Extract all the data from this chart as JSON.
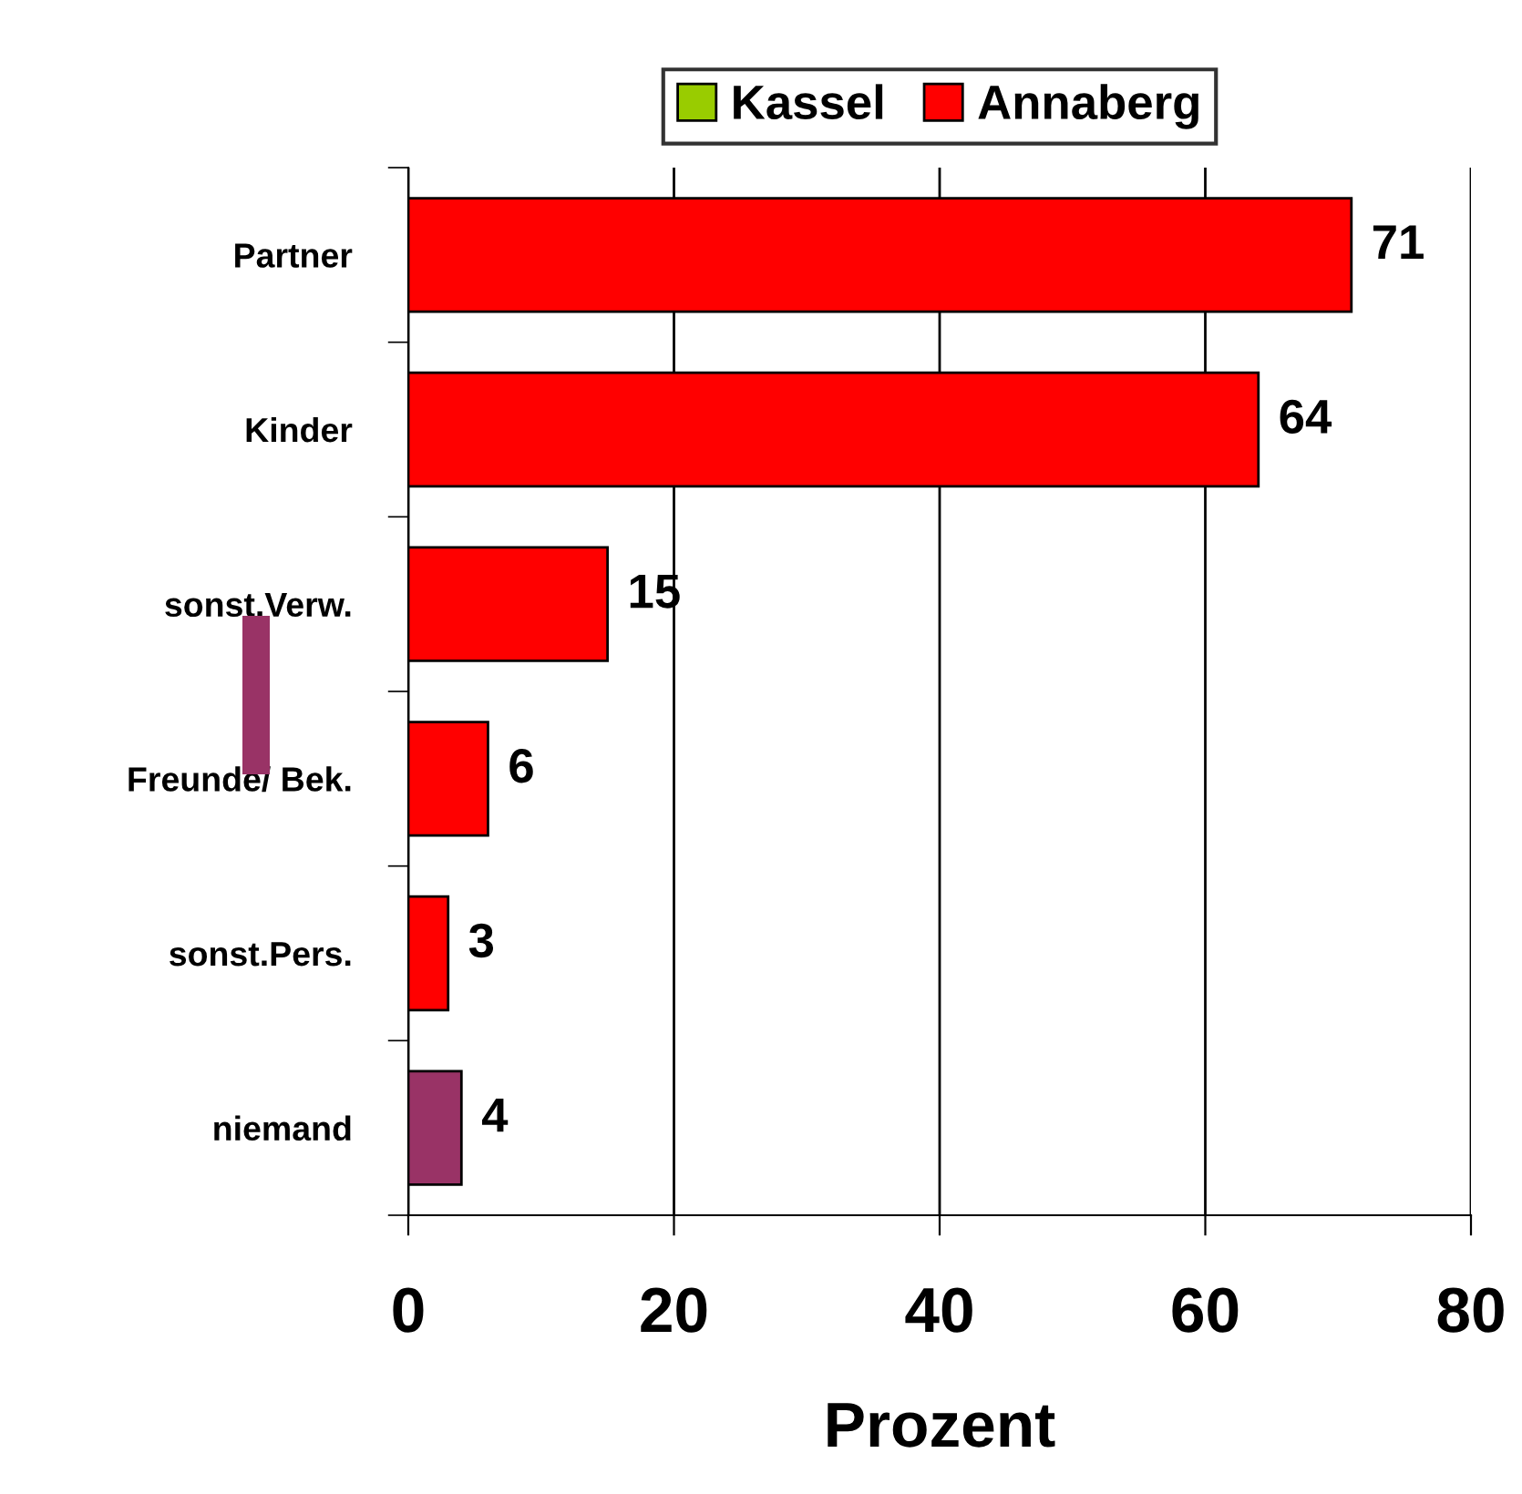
{
  "chart_data": {
    "type": "bar",
    "orientation": "horizontal",
    "xlabel": "Prozent",
    "categories": [
      "Partner",
      "Kinder",
      "sonst.Verw.",
      "Freunde/ Bek.",
      "sonst.Pers.",
      "niemand"
    ],
    "series": [
      {
        "name": "Kassel",
        "color": "#99cc00",
        "values": [
          null,
          null,
          null,
          null,
          null,
          null
        ]
      },
      {
        "name": "Annaberg",
        "color": "#ff0000",
        "colors": [
          "#ff0000",
          "#ff0000",
          "#ff0000",
          "#ff0000",
          "#ff0000",
          "#993366"
        ],
        "values": [
          71,
          64,
          15,
          6,
          3,
          4
        ]
      }
    ],
    "xlim": [
      0,
      80
    ],
    "xticks": [
      0,
      20,
      40,
      60,
      80
    ],
    "grid": "x",
    "legend": "top",
    "data_labels": true
  }
}
